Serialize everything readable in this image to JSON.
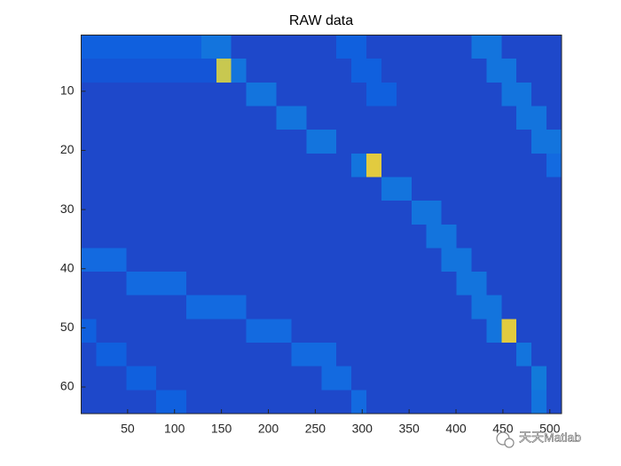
{
  "chart_data": {
    "type": "heatmap",
    "title": "RAW data",
    "colormap": "parula",
    "xlim": [
      0.5,
      512.5
    ],
    "xticks": [
      50,
      100,
      150,
      200,
      250,
      300,
      350,
      400,
      450,
      500
    ],
    "ylim": [
      0.5,
      64.5
    ],
    "yticks": [
      10,
      20,
      30,
      40,
      50,
      60
    ],
    "ydir": "reverse",
    "watermark": "天天Matlab",
    "z": [
      [
        0.11,
        0.11,
        0.11,
        0.11,
        0.11,
        0.11,
        0.11,
        0.11,
        0.17,
        0.17,
        0.07,
        0.07,
        0.07,
        0.07,
        0.07,
        0.07,
        0.07,
        0.11,
        0.11,
        0.07,
        0.07,
        0.07,
        0.07,
        0.07,
        0.07,
        0.07,
        0.17,
        0.17,
        0.07,
        0.07,
        0.07,
        0.07
      ],
      [
        0.09,
        0.09,
        0.09,
        0.09,
        0.09,
        0.09,
        0.09,
        0.09,
        0.09,
        0.7,
        0.17,
        0.07,
        0.07,
        0.07,
        0.07,
        0.07,
        0.07,
        0.07,
        0.11,
        0.11,
        0.07,
        0.07,
        0.07,
        0.07,
        0.07,
        0.07,
        0.07,
        0.17,
        0.17,
        0.07,
        0.07,
        0.07
      ],
      [
        0.07,
        0.07,
        0.07,
        0.07,
        0.07,
        0.07,
        0.07,
        0.07,
        0.07,
        0.07,
        0.07,
        0.17,
        0.17,
        0.07,
        0.07,
        0.07,
        0.07,
        0.07,
        0.07,
        0.11,
        0.11,
        0.07,
        0.07,
        0.07,
        0.07,
        0.07,
        0.07,
        0.07,
        0.17,
        0.17,
        0.07,
        0.07
      ],
      [
        0.07,
        0.07,
        0.07,
        0.07,
        0.07,
        0.07,
        0.07,
        0.07,
        0.07,
        0.07,
        0.07,
        0.07,
        0.07,
        0.17,
        0.17,
        0.07,
        0.07,
        0.07,
        0.07,
        0.07,
        0.07,
        0.07,
        0.07,
        0.07,
        0.07,
        0.07,
        0.07,
        0.07,
        0.07,
        0.17,
        0.17,
        0.07
      ],
      [
        0.07,
        0.07,
        0.07,
        0.07,
        0.07,
        0.07,
        0.07,
        0.07,
        0.07,
        0.07,
        0.07,
        0.07,
        0.07,
        0.07,
        0.07,
        0.17,
        0.17,
        0.07,
        0.07,
        0.07,
        0.07,
        0.07,
        0.07,
        0.07,
        0.07,
        0.07,
        0.07,
        0.07,
        0.07,
        0.07,
        0.17,
        0.17
      ],
      [
        0.07,
        0.07,
        0.07,
        0.07,
        0.07,
        0.07,
        0.07,
        0.07,
        0.07,
        0.07,
        0.07,
        0.07,
        0.07,
        0.07,
        0.07,
        0.07,
        0.07,
        0.07,
        0.17,
        0.75,
        0.07,
        0.07,
        0.07,
        0.07,
        0.07,
        0.07,
        0.07,
        0.07,
        0.07,
        0.07,
        0.07,
        0.14
      ],
      [
        0.07,
        0.07,
        0.07,
        0.07,
        0.07,
        0.07,
        0.07,
        0.07,
        0.07,
        0.07,
        0.07,
        0.07,
        0.07,
        0.07,
        0.07,
        0.07,
        0.07,
        0.07,
        0.07,
        0.07,
        0.17,
        0.17,
        0.07,
        0.07,
        0.07,
        0.07,
        0.07,
        0.07,
        0.07,
        0.07,
        0.07,
        0.07
      ],
      [
        0.07,
        0.07,
        0.07,
        0.07,
        0.07,
        0.07,
        0.07,
        0.07,
        0.07,
        0.07,
        0.07,
        0.07,
        0.07,
        0.07,
        0.07,
        0.07,
        0.07,
        0.07,
        0.07,
        0.07,
        0.07,
        0.07,
        0.17,
        0.17,
        0.07,
        0.07,
        0.07,
        0.07,
        0.07,
        0.07,
        0.07,
        0.07
      ],
      [
        0.07,
        0.07,
        0.07,
        0.07,
        0.07,
        0.07,
        0.07,
        0.07,
        0.07,
        0.07,
        0.07,
        0.07,
        0.07,
        0.07,
        0.07,
        0.07,
        0.07,
        0.07,
        0.07,
        0.07,
        0.07,
        0.07,
        0.07,
        0.17,
        0.17,
        0.07,
        0.07,
        0.07,
        0.07,
        0.07,
        0.07,
        0.07
      ],
      [
        0.14,
        0.14,
        0.14,
        0.07,
        0.07,
        0.07,
        0.07,
        0.07,
        0.07,
        0.07,
        0.07,
        0.07,
        0.07,
        0.07,
        0.07,
        0.07,
        0.07,
        0.07,
        0.07,
        0.07,
        0.07,
        0.07,
        0.07,
        0.07,
        0.17,
        0.17,
        0.07,
        0.07,
        0.07,
        0.07,
        0.07,
        0.07
      ],
      [
        0.07,
        0.07,
        0.07,
        0.14,
        0.14,
        0.14,
        0.14,
        0.07,
        0.07,
        0.07,
        0.07,
        0.07,
        0.07,
        0.07,
        0.07,
        0.07,
        0.07,
        0.07,
        0.07,
        0.07,
        0.07,
        0.07,
        0.07,
        0.07,
        0.07,
        0.17,
        0.17,
        0.07,
        0.07,
        0.07,
        0.07,
        0.07
      ],
      [
        0.07,
        0.07,
        0.07,
        0.07,
        0.07,
        0.07,
        0.07,
        0.14,
        0.14,
        0.14,
        0.14,
        0.07,
        0.07,
        0.07,
        0.07,
        0.07,
        0.07,
        0.07,
        0.07,
        0.07,
        0.07,
        0.07,
        0.07,
        0.07,
        0.07,
        0.07,
        0.17,
        0.17,
        0.07,
        0.07,
        0.07,
        0.07
      ],
      [
        0.11,
        0.07,
        0.07,
        0.07,
        0.07,
        0.07,
        0.07,
        0.07,
        0.07,
        0.07,
        0.07,
        0.14,
        0.14,
        0.14,
        0.07,
        0.07,
        0.07,
        0.07,
        0.07,
        0.07,
        0.07,
        0.07,
        0.07,
        0.07,
        0.07,
        0.07,
        0.07,
        0.17,
        0.75,
        0.07,
        0.07,
        0.07
      ],
      [
        0.07,
        0.11,
        0.11,
        0.07,
        0.07,
        0.07,
        0.07,
        0.07,
        0.07,
        0.07,
        0.07,
        0.07,
        0.07,
        0.07,
        0.14,
        0.14,
        0.14,
        0.07,
        0.07,
        0.07,
        0.07,
        0.07,
        0.07,
        0.07,
        0.07,
        0.07,
        0.07,
        0.07,
        0.07,
        0.17,
        0.07,
        0.07
      ],
      [
        0.07,
        0.07,
        0.07,
        0.11,
        0.11,
        0.07,
        0.07,
        0.07,
        0.07,
        0.07,
        0.07,
        0.07,
        0.07,
        0.07,
        0.07,
        0.07,
        0.14,
        0.14,
        0.07,
        0.07,
        0.07,
        0.07,
        0.07,
        0.07,
        0.07,
        0.07,
        0.07,
        0.07,
        0.07,
        0.07,
        0.19,
        0.07
      ],
      [
        0.07,
        0.07,
        0.07,
        0.07,
        0.07,
        0.11,
        0.11,
        0.07,
        0.07,
        0.07,
        0.07,
        0.07,
        0.07,
        0.07,
        0.07,
        0.07,
        0.07,
        0.07,
        0.14,
        0.07,
        0.07,
        0.07,
        0.07,
        0.07,
        0.07,
        0.07,
        0.07,
        0.07,
        0.07,
        0.07,
        0.17,
        0.07
      ]
    ]
  }
}
